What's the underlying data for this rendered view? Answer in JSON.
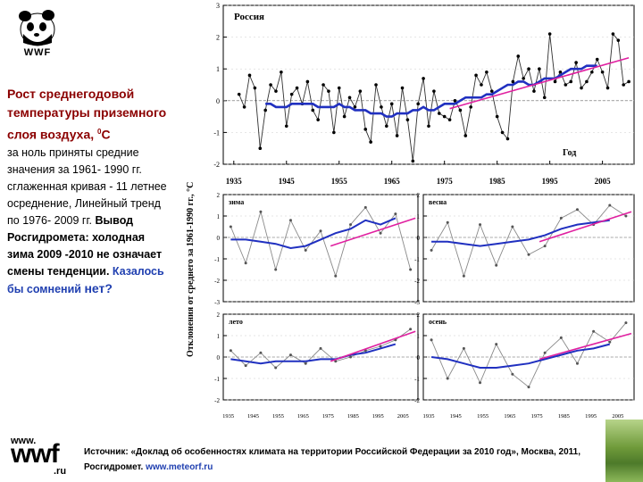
{
  "logo": {
    "text": "WWF",
    "icon": "panda-icon"
  },
  "left": {
    "title_main": "Рост среднегодовой температуры приземного слоя воздуха,",
    "title_sup": "0",
    "title_unit": "С",
    "line1": "за ноль приняты средние значения за 1961- 1990 гг. сглаженная кривая - 11 летнее осреднение, Линейный тренд по 1976- 2009 гг.",
    "bold_text": "Вывод Росгидромета: холодная зима 2009 -2010 не означает смены тенденции.",
    "blue_text": "Казалось бы сомнений",
    "blue_big": "нет?"
  },
  "footer": {
    "www": "www.",
    "wwf": "wwf",
    "ru": ".ru",
    "source_text": "Источник: «Доклад об особенностях климата на территории Российской Федерации за 2010 год», Москва, 2011, Росгидромет.",
    "source_link": "www.meteorf.ru"
  },
  "y_axis_label": "Отклонения от среднего за 1961-1990 гг., °С",
  "chart_data": [
    {
      "type": "line",
      "title": "Россия",
      "xlabel": "Год",
      "ylabel": "Отклонения от среднего за 1961-1990 гг., °С",
      "ylim": [
        -2,
        3
      ],
      "yticks": [
        "3",
        "2",
        "1",
        "0",
        "-1",
        "-2"
      ],
      "xticks": [
        "1935",
        "1945",
        "1955",
        "1965",
        "1975",
        "1985",
        "1995",
        "2005"
      ],
      "x": [
        1936,
        1937,
        1938,
        1939,
        1940,
        1941,
        1942,
        1943,
        1944,
        1945,
        1946,
        1947,
        1948,
        1949,
        1950,
        1951,
        1952,
        1953,
        1954,
        1955,
        1956,
        1957,
        1958,
        1959,
        1960,
        1961,
        1962,
        1963,
        1964,
        1965,
        1966,
        1967,
        1968,
        1969,
        1970,
        1971,
        1972,
        1973,
        1974,
        1975,
        1976,
        1977,
        1978,
        1979,
        1980,
        1981,
        1982,
        1983,
        1984,
        1985,
        1986,
        1987,
        1988,
        1989,
        1990,
        1991,
        1992,
        1993,
        1994,
        1995,
        1996,
        1997,
        1998,
        1999,
        2000,
        2001,
        2002,
        2003,
        2004,
        2005,
        2006,
        2007,
        2008,
        2009,
        2010
      ],
      "series": [
        {
          "name": "annual",
          "values": [
            0.2,
            -0.2,
            0.8,
            0.4,
            -1.5,
            -0.3,
            0.5,
            0.3,
            0.9,
            -0.8,
            0.2,
            0.4,
            -0.1,
            0.6,
            -0.3,
            -0.6,
            0.5,
            0.3,
            -1.0,
            0.4,
            -0.5,
            0.1,
            -0.2,
            0.3,
            -0.9,
            -1.3,
            0.5,
            -0.2,
            -0.8,
            -0.1,
            -1.1,
            0.4,
            -0.6,
            -1.9,
            -0.1,
            0.7,
            -0.8,
            0.3,
            -0.4,
            -0.5,
            -0.6,
            0.0,
            -0.3,
            -1.1,
            -0.2,
            0.8,
            0.5,
            0.9,
            0.3,
            -0.5,
            -1.0,
            -1.2,
            0.6,
            1.4,
            0.7,
            1.0,
            0.3,
            1.0,
            0.1,
            2.1,
            0.6,
            0.9,
            0.5,
            0.6,
            1.2,
            0.4,
            0.6,
            0.9,
            1.3,
            0.9,
            0.4,
            2.1,
            1.9,
            0.5,
            0.6
          ]
        },
        {
          "name": "smoothed_11yr",
          "values": [
            null,
            null,
            null,
            null,
            null,
            -0.1,
            -0.1,
            -0.2,
            -0.2,
            -0.2,
            -0.1,
            -0.1,
            -0.1,
            -0.1,
            -0.1,
            -0.2,
            -0.2,
            -0.2,
            -0.2,
            -0.1,
            -0.2,
            -0.2,
            -0.3,
            -0.3,
            -0.3,
            -0.4,
            -0.4,
            -0.4,
            -0.5,
            -0.5,
            -0.4,
            -0.4,
            -0.4,
            -0.3,
            -0.3,
            -0.2,
            -0.3,
            -0.3,
            -0.2,
            -0.1,
            -0.1,
            -0.1,
            0.0,
            0.1,
            0.1,
            0.1,
            0.1,
            0.2,
            0.2,
            0.3,
            0.4,
            0.5,
            0.5,
            0.6,
            0.6,
            0.5,
            0.5,
            0.6,
            0.7,
            0.7,
            0.7,
            0.8,
            0.9,
            1.0,
            1.0,
            1.0,
            1.1,
            1.1,
            1.1,
            null,
            null,
            null,
            null,
            null,
            null
          ]
        },
        {
          "name": "linear_trend_1976_2009",
          "x": [
            1976,
            2010
          ],
          "values": [
            -0.25,
            1.35
          ]
        }
      ]
    },
    {
      "type": "line",
      "title": "зима",
      "ylim": [
        -3,
        2
      ],
      "yticks": [
        "2",
        "1",
        "0",
        "-1",
        "-2",
        "-3"
      ],
      "x": [
        1936,
        1942,
        1948,
        1954,
        1960,
        1966,
        1972,
        1978,
        1984,
        1990,
        1996,
        2002,
        2008
      ],
      "series": [
        {
          "name": "annual",
          "values": [
            0.5,
            -1.2,
            1.2,
            -1.5,
            0.8,
            -0.6,
            0.3,
            -1.8,
            0.6,
            1.4,
            0.2,
            1.1,
            -1.5
          ]
        },
        {
          "name": "smoothed_11yr",
          "values": [
            -0.1,
            -0.1,
            -0.2,
            -0.3,
            -0.5,
            -0.4,
            -0.1,
            0.2,
            0.4,
            0.8,
            0.6,
            0.9,
            null
          ]
        },
        {
          "name": "linear_trend_1976_2009",
          "x": [
            1976,
            2010
          ],
          "values": [
            -0.4,
            0.9
          ]
        }
      ]
    },
    {
      "type": "line",
      "title": "весна",
      "ylim": [
        -3,
        2
      ],
      "yticks": [
        "2",
        "1",
        "0",
        "-1",
        "-2",
        "-3"
      ],
      "x": [
        1936,
        1942,
        1948,
        1954,
        1960,
        1966,
        1972,
        1978,
        1984,
        1990,
        1996,
        2002,
        2008
      ],
      "series": [
        {
          "name": "annual",
          "values": [
            -0.6,
            0.7,
            -1.8,
            0.6,
            -1.3,
            0.5,
            -0.8,
            -0.4,
            0.9,
            1.3,
            0.6,
            1.5,
            1.0
          ]
        },
        {
          "name": "smoothed_11yr",
          "values": [
            -0.2,
            -0.2,
            -0.3,
            -0.4,
            -0.3,
            -0.2,
            -0.1,
            0.1,
            0.4,
            0.6,
            0.7,
            0.8,
            null
          ]
        },
        {
          "name": "linear_trend_1976_2009",
          "x": [
            1976,
            2010
          ],
          "values": [
            -0.2,
            1.2
          ]
        }
      ]
    },
    {
      "type": "line",
      "title": "лето",
      "ylim": [
        -2,
        2
      ],
      "yticks": [
        "2",
        "1",
        "0",
        "-1",
        "-2"
      ],
      "x": [
        1936,
        1942,
        1948,
        1954,
        1960,
        1966,
        1972,
        1978,
        1984,
        1990,
        1996,
        2002,
        2008
      ],
      "series": [
        {
          "name": "annual",
          "values": [
            0.3,
            -0.4,
            0.2,
            -0.5,
            0.1,
            -0.3,
            0.4,
            -0.2,
            0.0,
            0.3,
            0.5,
            0.8,
            1.3
          ]
        },
        {
          "name": "smoothed_11yr",
          "values": [
            -0.1,
            -0.2,
            -0.3,
            -0.2,
            -0.2,
            -0.2,
            -0.1,
            -0.1,
            0.1,
            0.2,
            0.4,
            0.6,
            null
          ]
        },
        {
          "name": "linear_trend_1976_2009",
          "x": [
            1976,
            2010
          ],
          "values": [
            -0.2,
            1.2
          ]
        }
      ]
    },
    {
      "type": "line",
      "title": "осень",
      "ylim": [
        -2,
        2
      ],
      "yticks": [
        "2",
        "1",
        "0",
        "-1",
        "-2"
      ],
      "x": [
        1936,
        1942,
        1948,
        1954,
        1960,
        1966,
        1972,
        1978,
        1984,
        1990,
        1996,
        2002,
        2008
      ],
      "series": [
        {
          "name": "annual",
          "values": [
            0.8,
            -1.0,
            0.4,
            -1.2,
            0.6,
            -0.8,
            -1.4,
            0.2,
            0.9,
            -0.3,
            1.2,
            0.7,
            1.6
          ]
        },
        {
          "name": "smoothed_11yr",
          "values": [
            0.0,
            -0.1,
            -0.3,
            -0.5,
            -0.5,
            -0.4,
            -0.3,
            -0.1,
            0.1,
            0.3,
            0.4,
            0.6,
            null
          ]
        },
        {
          "name": "linear_trend_1976_2009",
          "x": [
            1976,
            2010
          ],
          "values": [
            -0.1,
            1.1
          ]
        }
      ]
    }
  ],
  "panels_xticks": [
    "1935",
    "1945",
    "1955",
    "1965",
    "1975",
    "1985",
    "1995",
    "2005",
    "1935",
    "1945",
    "1955",
    "1965",
    "1975",
    "1985",
    "1995",
    "2005"
  ],
  "bottom_xticks": [
    "1935",
    "1945",
    "1955",
    "1965",
    "1975",
    "1985",
    "1995",
    "2005"
  ],
  "colors": {
    "title": "#8b0000",
    "accent_blue": "#1f3fb0",
    "smooth": "#2030c0",
    "trend": "#e020a0",
    "annual": "#303030",
    "panel_annual": "#8a8a8a"
  }
}
